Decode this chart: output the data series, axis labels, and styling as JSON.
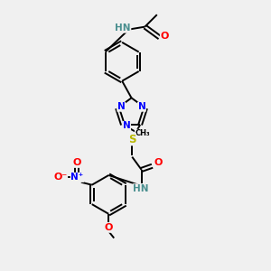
{
  "bg_color": "#f0f0f0",
  "atom_colors": {
    "C": "#000000",
    "N": "#0000ff",
    "O": "#ff0000",
    "S": "#b8b800",
    "H": "#4a8f8f"
  },
  "bond_width": 1.4,
  "font_size": 7.5,
  "figsize": [
    3.0,
    3.0
  ],
  "dpi": 100,
  "xlim": [
    0,
    10
  ],
  "ylim": [
    0,
    10
  ]
}
